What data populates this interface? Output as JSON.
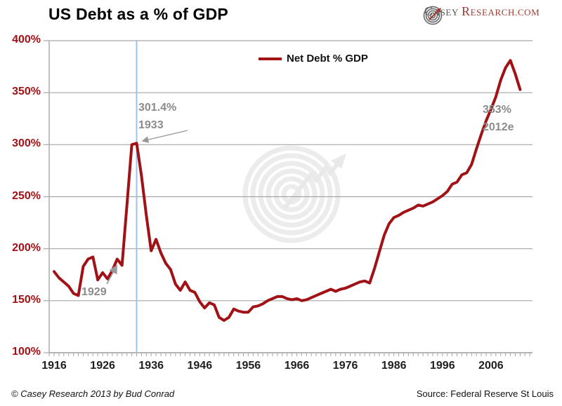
{
  "header": {
    "title": "US Debt as a % of GDP",
    "logo": {
      "c1": "C",
      "rest1": "ASEY",
      "c2": "R",
      "rest2": "ESEARCH.COM"
    }
  },
  "footer": {
    "copyright": "© Casey Research 2013 by Bud Conrad",
    "source": "Source: Federal Reserve St Louis"
  },
  "colors": {
    "series_red": "#a11216",
    "axis_label_red": "#a11216",
    "gridline_gray": "#a6a6a6",
    "event_line_blue": "#9dc3e6",
    "annotation_gray": "#8c8c8c",
    "arrow_gray": "#999999",
    "watermark_gray": "#ececec",
    "logo_gray": "#555557",
    "logo_red": "#9e3a31"
  },
  "chart_data": {
    "type": "line",
    "title": "US Debt as a % of GDP",
    "legend": "Net Debt % GDP",
    "legend_position": "top-center",
    "grid": true,
    "xlabel": "",
    "ylabel": "",
    "ylim": [
      100,
      400
    ],
    "xlim": [
      1915,
      2014
    ],
    "y_tick_labels": [
      "400%",
      "350%",
      "300%",
      "250%",
      "200%",
      "150%",
      "100%"
    ],
    "y_tick_values": [
      400,
      350,
      300,
      250,
      200,
      150,
      100
    ],
    "x_tick_labels": [
      "1916",
      "1926",
      "1936",
      "1946",
      "1956",
      "1966",
      "1976",
      "1986",
      "1996",
      "2006"
    ],
    "x_tick_values": [
      1916,
      1926,
      1936,
      1946,
      1956,
      1966,
      1976,
      1986,
      1996,
      2006
    ],
    "start_year": 1916,
    "end_year": 2012,
    "event_line_year": 1933,
    "series": [
      {
        "name": "Net Debt % GDP",
        "x_start": 1916,
        "values": [
          178,
          172,
          168,
          164,
          157,
          155,
          183,
          190,
          192,
          170,
          177,
          171,
          179,
          190,
          184,
          242,
          300,
          301.4,
          270,
          232,
          198,
          209,
          196,
          186,
          180,
          166,
          160,
          168,
          160,
          158,
          149,
          143,
          148,
          146,
          134,
          131,
          134,
          142,
          140,
          139,
          139,
          144,
          145,
          147,
          150,
          152,
          154,
          154,
          152,
          151,
          152,
          150,
          151,
          153,
          155,
          157,
          159,
          161,
          159,
          161,
          162,
          164,
          166,
          168,
          169,
          167,
          181,
          197,
          213,
          224,
          230,
          232,
          235,
          237,
          239,
          242,
          241,
          243,
          245,
          248,
          251,
          255,
          262,
          264,
          271,
          273,
          281,
          296,
          310,
          323,
          334,
          346,
          362,
          374,
          381,
          368,
          353
        ]
      }
    ],
    "annotations": [
      {
        "id": "peak-1933",
        "lines": [
          "301.4%",
          "1933"
        ],
        "points_to": {
          "year": 1933,
          "value": 301.4
        }
      },
      {
        "id": "year-1929",
        "lines": [
          "1929"
        ],
        "points_to": {
          "year": 1929,
          "value": 190
        }
      },
      {
        "id": "est-2012",
        "lines": [
          "353%",
          "2012e"
        ],
        "points_to": {
          "year": 2012,
          "value": 353
        }
      }
    ]
  }
}
